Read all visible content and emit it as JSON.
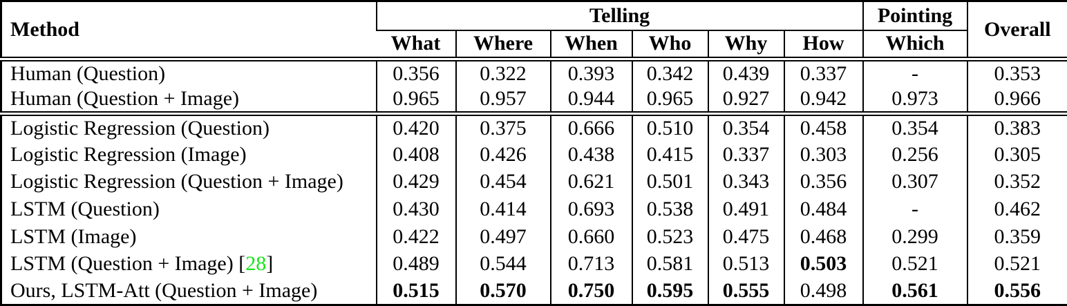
{
  "table": {
    "citation_color": "#17E617",
    "header": {
      "method_label": "Method",
      "telling_label": "Telling",
      "pointing_label": "Pointing",
      "overall_label": "Overall",
      "subcolumns": [
        "What",
        "Where",
        "When",
        "Who",
        "Why",
        "How",
        "Which"
      ]
    },
    "blocks": [
      {
        "rows": [
          {
            "method": "Human (Question)",
            "values": [
              "0.356",
              "0.322",
              "0.393",
              "0.342",
              "0.439",
              "0.337",
              "-",
              "0.353"
            ],
            "bold": []
          },
          {
            "method": "Human (Question + Image)",
            "values": [
              "0.965",
              "0.957",
              "0.944",
              "0.965",
              "0.927",
              "0.942",
              "0.973",
              "0.966"
            ],
            "bold": []
          }
        ]
      },
      {
        "rows": [
          {
            "method": "Logistic Regression (Question)",
            "values": [
              "0.420",
              "0.375",
              "0.666",
              "0.510",
              "0.354",
              "0.458",
              "0.354",
              "0.383"
            ],
            "bold": []
          },
          {
            "method": "Logistic Regression (Image)",
            "values": [
              "0.408",
              "0.426",
              "0.438",
              "0.415",
              "0.337",
              "0.303",
              "0.256",
              "0.305"
            ],
            "bold": []
          },
          {
            "method": "Logistic Regression (Question + Image)",
            "values": [
              "0.429",
              "0.454",
              "0.621",
              "0.501",
              "0.343",
              "0.356",
              "0.307",
              "0.352"
            ],
            "bold": []
          },
          {
            "method": "LSTM (Question)",
            "values": [
              "0.430",
              "0.414",
              "0.693",
              "0.538",
              "0.491",
              "0.484",
              "-",
              "0.462"
            ],
            "bold": []
          },
          {
            "method": "LSTM (Image)",
            "values": [
              "0.422",
              "0.497",
              "0.660",
              "0.523",
              "0.475",
              "0.468",
              "0.299",
              "0.359"
            ],
            "bold": []
          },
          {
            "method": "LSTM (Question + Image)",
            "cite_prefix": " [",
            "cite": "28",
            "cite_suffix": "]",
            "values": [
              "0.489",
              "0.544",
              "0.713",
              "0.581",
              "0.513",
              "0.503",
              "0.521",
              "0.521"
            ],
            "bold": [
              5
            ]
          },
          {
            "method": "Ours, LSTM-Att (Question + Image)",
            "values": [
              "0.515",
              "0.570",
              "0.750",
              "0.595",
              "0.555",
              "0.498",
              "0.561",
              "0.556"
            ],
            "bold": [
              0,
              1,
              2,
              3,
              4,
              6,
              7
            ]
          }
        ]
      }
    ]
  }
}
